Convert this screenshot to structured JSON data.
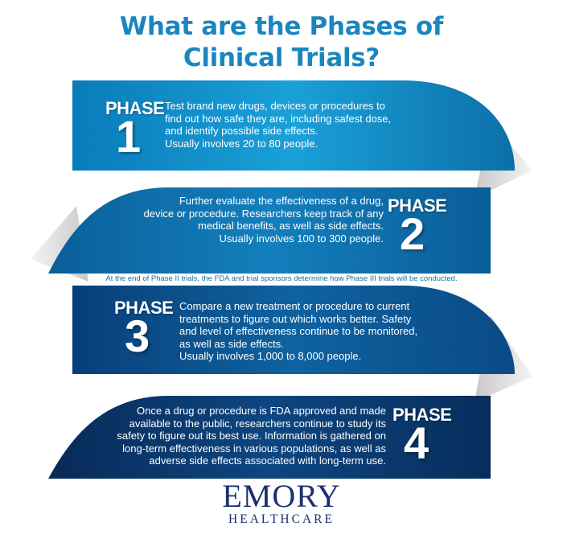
{
  "title_line1": "What are the Phases of",
  "title_line2": "Clinical Trials?",
  "colors": {
    "title": "#1a86bf",
    "phase1": "#0f8fc8",
    "phase2": "#0b6da8",
    "phase3": "#0a4f8a",
    "phase4": "#0b3566",
    "logo": "#1a2f6e"
  },
  "phases": [
    {
      "label": "PHASE",
      "number": "1",
      "lines": [
        "Test brand new drugs, devices or procedures to",
        "find out how safe they are, including safest dose,",
        "and identify possible side effects.",
        "Usually involves 20 to 80 people."
      ]
    },
    {
      "label": "PHASE",
      "number": "2",
      "lines": [
        "Further evaluate the effectiveness of a drug,",
        "device or procedure. Researchers keep track of any",
        "medical benefits, as well as side effects.",
        "Usually involves 100 to 300 people."
      ]
    },
    {
      "label": "PHASE",
      "number": "3",
      "lines": [
        "Compare a new treatment or procedure to current",
        "treatments to figure out which works better. Safety",
        "and level of effectiveness continue to be monitored,",
        "as well as side effects.",
        "Usually involves 1,000 to 8,000 people."
      ]
    },
    {
      "label": "PHASE",
      "number": "4",
      "lines": [
        "Once a drug or procedure is FDA approved and made",
        "available to the public, researchers continue to study its",
        "safety to figure out its best use. Information is gathered on",
        "long-term effectiveness in various populations, as well as",
        "adverse side effects associated with long-term use."
      ]
    }
  ],
  "transition_note": "At the end of Phase II trials, the FDA and trial sponsors determine how Phase III trials will be conducted.",
  "logo": {
    "main": "EMORY",
    "sub": "HEALTHCARE"
  }
}
